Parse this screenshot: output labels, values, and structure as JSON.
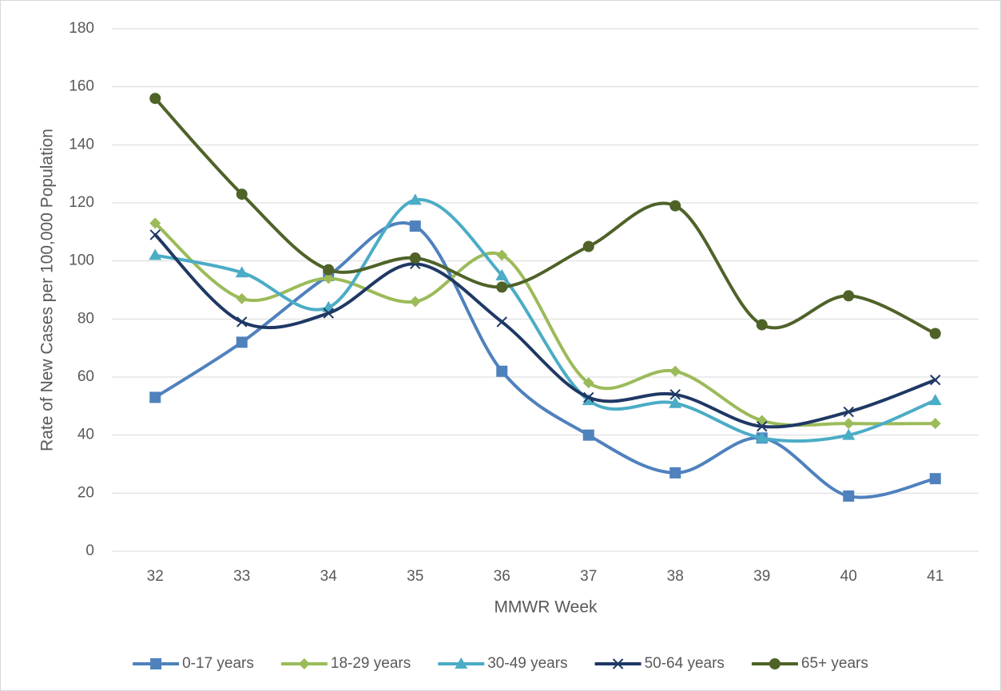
{
  "chart_data": {
    "type": "line",
    "x_label": "MMWR Week",
    "y_label": "Rate of New Cases per 100,000 Population",
    "categories": [
      "32",
      "33",
      "34",
      "35",
      "36",
      "37",
      "38",
      "39",
      "40",
      "41"
    ],
    "series": [
      {
        "name": "0-17 years",
        "color": "#4f81bd",
        "marker": "square",
        "values": [
          53,
          72,
          95,
          112,
          62,
          40,
          27,
          39,
          19,
          25
        ]
      },
      {
        "name": "18-29 years",
        "color": "#9bbb59",
        "marker": "diamond",
        "values": [
          113,
          87,
          94,
          86,
          102,
          58,
          62,
          45,
          44,
          44
        ]
      },
      {
        "name": "30-49 years",
        "color": "#4bacc6",
        "marker": "triangle",
        "values": [
          102,
          96,
          84,
          121,
          95,
          52,
          51,
          39,
          40,
          52
        ]
      },
      {
        "name": "50-64 years",
        "color": "#1f3864",
        "marker": "x",
        "values": [
          109,
          79,
          82,
          99,
          79,
          53,
          54,
          43,
          48,
          59
        ]
      },
      {
        "name": "65+ years",
        "color": "#4f6228",
        "marker": "circle",
        "values": [
          156,
          123,
          97,
          101,
          91,
          105,
          119,
          78,
          88,
          75
        ]
      }
    ],
    "ylim": [
      0,
      180
    ],
    "yticks": [
      0,
      20,
      40,
      60,
      80,
      100,
      120,
      140,
      160,
      180
    ],
    "grid": true,
    "smooth": true,
    "legend": "bottom"
  }
}
